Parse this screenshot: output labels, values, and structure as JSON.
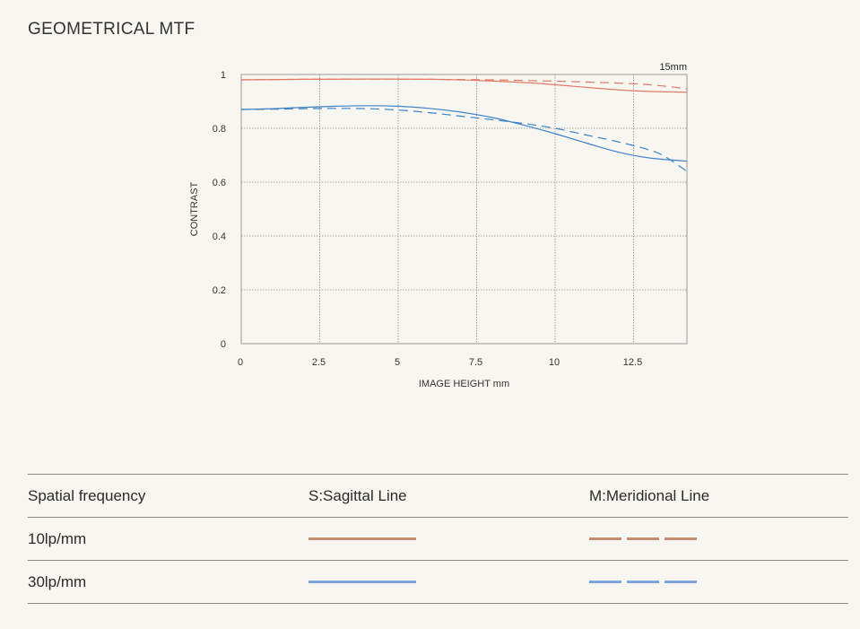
{
  "page": {
    "title": "GEOMETRICAL MTF"
  },
  "legend": {
    "header": {
      "col1": "Spatial frequency",
      "col2": "S:Sagittal Line",
      "col3": "M:Meridional Line"
    },
    "rows": [
      {
        "label": "10lp/mm",
        "color": "#c98a72"
      },
      {
        "label": "30lp/mm",
        "color": "#7ea2e2"
      }
    ]
  },
  "chart_data": {
    "type": "line",
    "title": "GEOMETRICAL MTF",
    "corner_label": "15mm",
    "xlabel": "IMAGE HEIGHT  mm",
    "ylabel": "CONTRAST",
    "xlim": [
      0,
      14.2
    ],
    "ylim": [
      0,
      1
    ],
    "x_ticks": [
      0,
      2.5,
      5,
      7.5,
      10,
      12.5
    ],
    "x_tick_labels": [
      "0",
      "2.5",
      "5",
      "7.5",
      "10",
      "12.5"
    ],
    "y_ticks": [
      0,
      0.2,
      0.4,
      0.6,
      0.8,
      1
    ],
    "y_tick_labels": [
      "0",
      "0.2",
      "0.4",
      "0.6",
      "0.8",
      "1"
    ],
    "grid": true,
    "series": [
      {
        "name": "10lp/mm Sagittal",
        "color": "#e07a66",
        "dash": false,
        "x": [
          0,
          2,
          4,
          6,
          7.5,
          9,
          10,
          11,
          12,
          13,
          14.2
        ],
        "y": [
          0.98,
          0.982,
          0.983,
          0.982,
          0.978,
          0.97,
          0.962,
          0.952,
          0.943,
          0.937,
          0.934
        ]
      },
      {
        "name": "10lp/mm Meridional",
        "color": "#e07a66",
        "dash": true,
        "x": [
          0,
          2,
          4,
          6,
          8,
          10,
          11,
          12,
          13,
          14,
          14.2
        ],
        "y": [
          0.98,
          0.982,
          0.983,
          0.982,
          0.98,
          0.975,
          0.972,
          0.968,
          0.962,
          0.95,
          0.945
        ]
      },
      {
        "name": "30lp/mm Sagittal",
        "color": "#3f82c8",
        "dash": false,
        "x": [
          0,
          1,
          2,
          3,
          4,
          5,
          6,
          7,
          8,
          9,
          10,
          11,
          12,
          13,
          14.2
        ],
        "y": [
          0.87,
          0.873,
          0.878,
          0.882,
          0.884,
          0.882,
          0.874,
          0.86,
          0.84,
          0.812,
          0.78,
          0.745,
          0.712,
          0.69,
          0.678
        ]
      },
      {
        "name": "30lp/mm Meridional",
        "color": "#3f82c8",
        "dash": true,
        "x": [
          0,
          1,
          2,
          3,
          4,
          5,
          6,
          7,
          8,
          9,
          10,
          11,
          12,
          13,
          13.5,
          14.2
        ],
        "y": [
          0.87,
          0.871,
          0.873,
          0.874,
          0.873,
          0.868,
          0.858,
          0.845,
          0.832,
          0.818,
          0.8,
          0.775,
          0.75,
          0.72,
          0.695,
          0.64
        ]
      }
    ]
  }
}
